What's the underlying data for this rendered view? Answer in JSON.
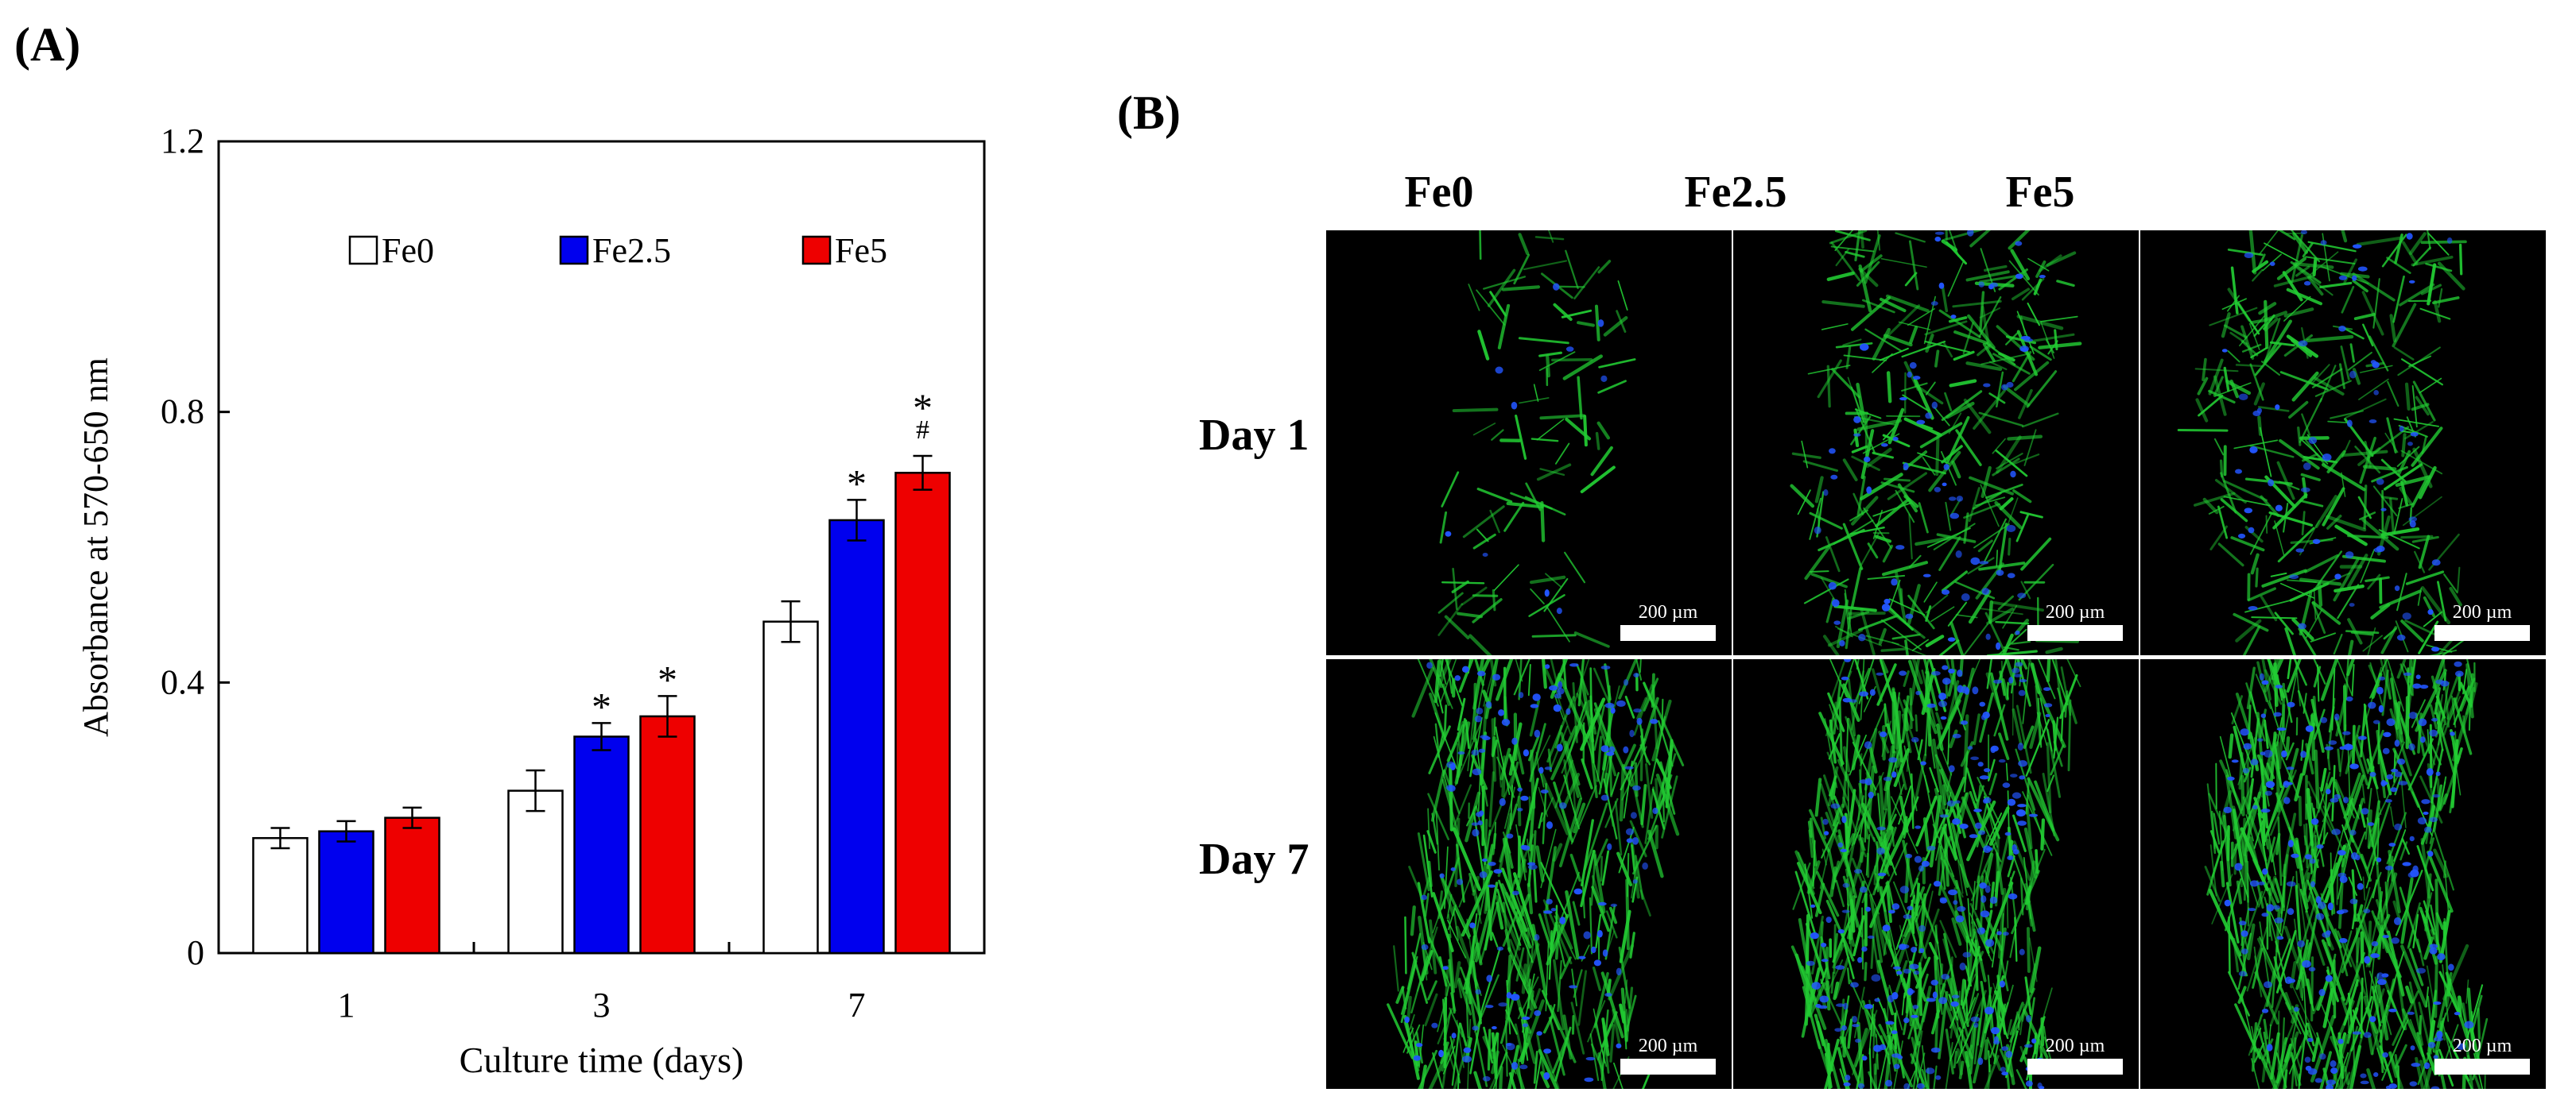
{
  "panels": {
    "a_label": "(A)",
    "b_label": "(B)"
  },
  "chart_data": {
    "type": "bar",
    "categories": [
      "1",
      "3",
      "7"
    ],
    "series": [
      {
        "name": "Fe0",
        "color": "#ffffff",
        "values": [
          0.17,
          0.24,
          0.49
        ],
        "errors": [
          0.015,
          0.03,
          0.03
        ],
        "annotations": [
          "",
          "",
          ""
        ]
      },
      {
        "name": "Fe2.5",
        "color": "#0000ee",
        "values": [
          0.18,
          0.32,
          0.64
        ],
        "errors": [
          0.015,
          0.02,
          0.03
        ],
        "annotations": [
          "",
          "*",
          "*"
        ]
      },
      {
        "name": "Fe5",
        "color": "#ee0000",
        "values": [
          0.2,
          0.35,
          0.71
        ],
        "errors": [
          0.015,
          0.03,
          0.025
        ],
        "annotations": [
          "",
          "*",
          "*\n#"
        ]
      }
    ],
    "xlabel": "Culture time (days)",
    "ylabel": "Absorbance at 570-650 nm",
    "ylim": [
      0,
      1.2
    ],
    "yticks": [
      0,
      0.4,
      0.8,
      1.2
    ],
    "ytick_labels": [
      "0",
      "0.4",
      "0.8",
      "1.2"
    ],
    "legend_position": "top"
  },
  "micrographs": {
    "columns": [
      "Fe0",
      "Fe2.5",
      "Fe5"
    ],
    "rows": [
      "Day 1",
      "Day 7"
    ],
    "scale_bar_label": "200 µm",
    "stain_colors": {
      "actin": "#22cc33",
      "nuclei": "#2255ff"
    }
  }
}
